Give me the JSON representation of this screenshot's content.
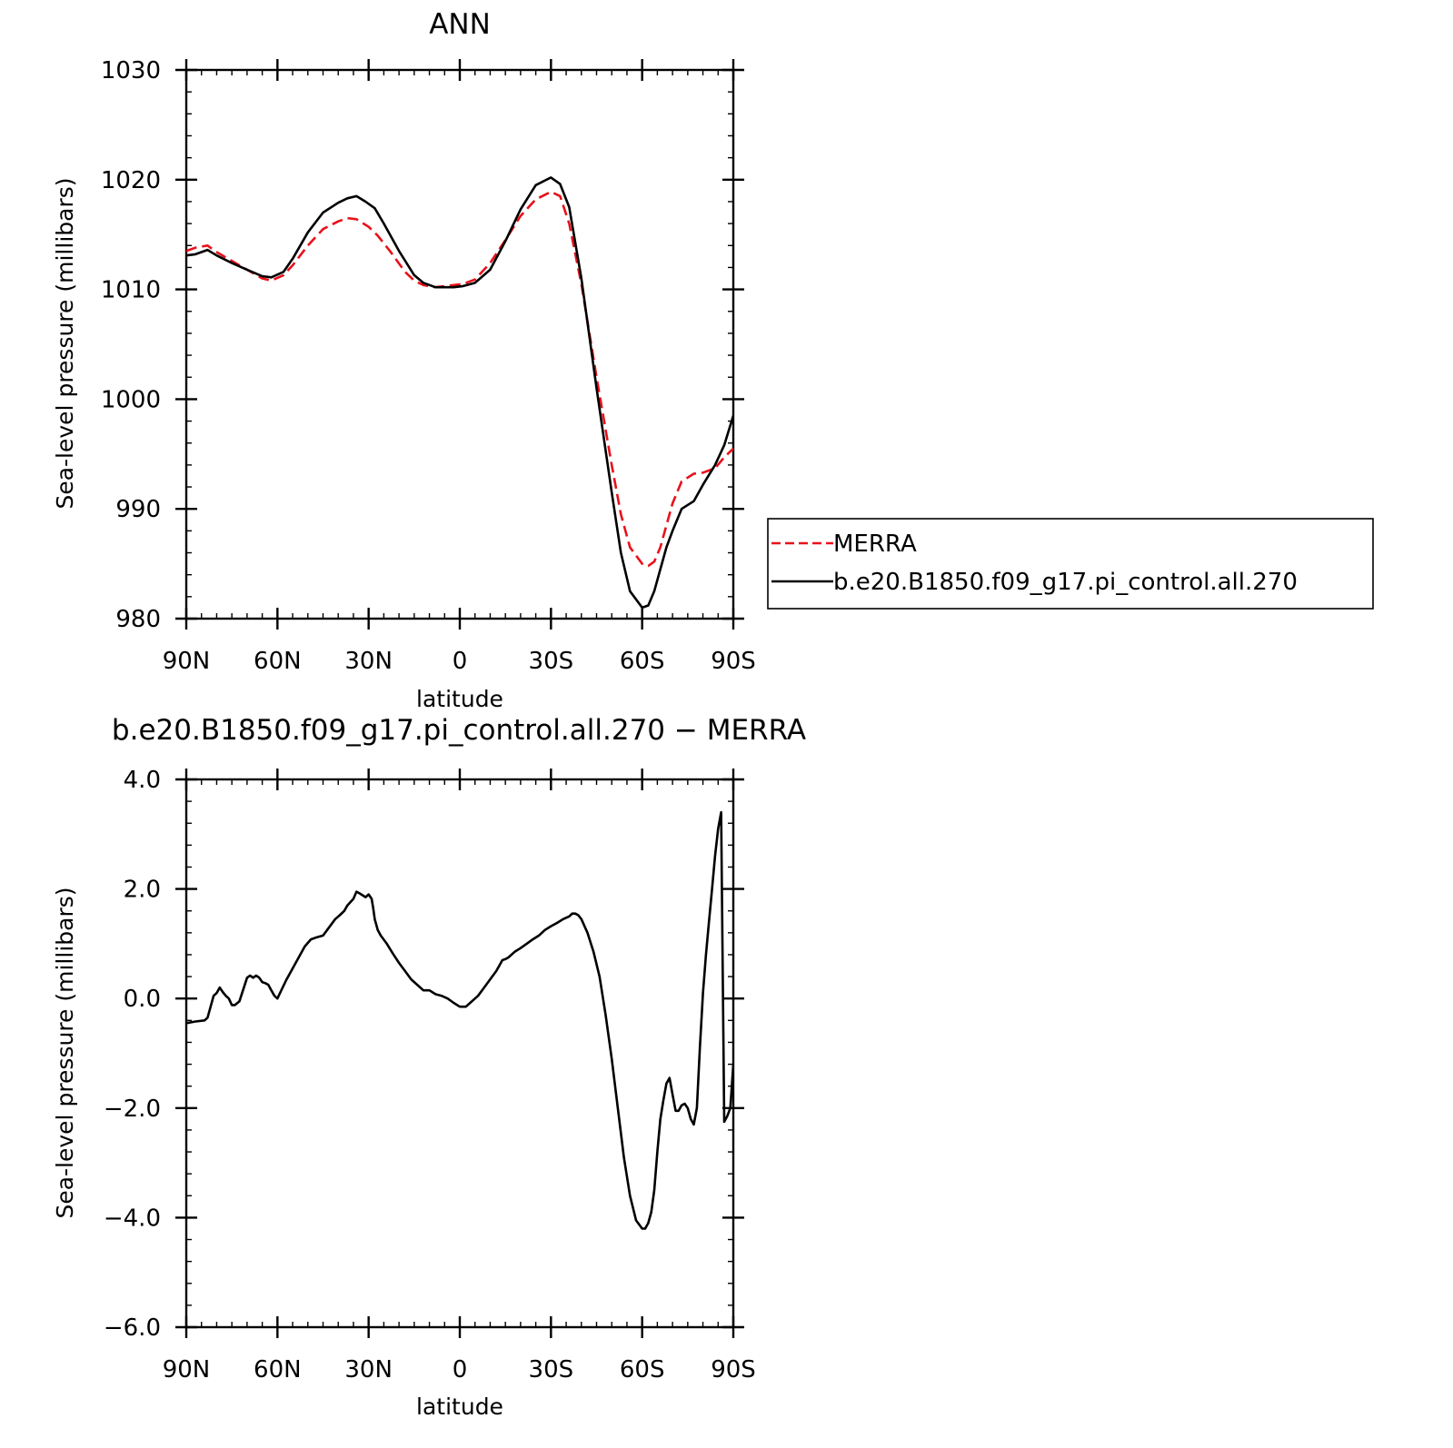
{
  "chart_data": [
    {
      "type": "line",
      "title": "ANN",
      "xlabel": "latitude",
      "ylabel": "Sea-level pressure (millibars)",
      "xlim": [
        90,
        -90
      ],
      "ylim": [
        980,
        1030
      ],
      "x_ticks": [
        {
          "value": 90,
          "label": "90N"
        },
        {
          "value": 60,
          "label": "60N"
        },
        {
          "value": 30,
          "label": "30N"
        },
        {
          "value": 0,
          "label": "0"
        },
        {
          "value": -30,
          "label": "30S"
        },
        {
          "value": -60,
          "label": "60S"
        },
        {
          "value": -90,
          "label": "90S"
        }
      ],
      "y_ticks": [
        {
          "value": 980,
          "label": "980"
        },
        {
          "value": 990,
          "label": "990"
        },
        {
          "value": 1000,
          "label": "1000"
        },
        {
          "value": 1010,
          "label": "1010"
        },
        {
          "value": 1020,
          "label": "1020"
        },
        {
          "value": 1030,
          "label": "1030"
        }
      ],
      "legend": {
        "placement": "right"
      },
      "series": [
        {
          "name": "MERRA",
          "color": "#e8111b",
          "dash": true,
          "x": [
            90,
            87,
            83,
            80,
            75,
            70,
            65,
            62,
            58,
            55,
            50,
            45,
            40,
            37,
            34,
            30,
            27,
            23,
            18,
            15,
            12,
            8,
            5,
            2,
            -1,
            -5,
            -10,
            -15,
            -20,
            -25,
            -30,
            -33,
            -36,
            -40,
            -45,
            -50,
            -53,
            -56,
            -60,
            -62,
            -64,
            -66,
            -68,
            -70,
            -73,
            -77,
            -80,
            -84,
            -87,
            -90
          ],
          "y": [
            1013.5,
            1013.8,
            1014.0,
            1013.4,
            1012.6,
            1011.8,
            1011.0,
            1010.8,
            1011.3,
            1012.2,
            1014.0,
            1015.5,
            1016.2,
            1016.5,
            1016.4,
            1015.7,
            1014.9,
            1013.5,
            1011.6,
            1010.8,
            1010.4,
            1010.2,
            1010.3,
            1010.4,
            1010.5,
            1010.9,
            1012.4,
            1014.5,
            1016.7,
            1018.2,
            1018.9,
            1018.5,
            1016.0,
            1010.5,
            1002.0,
            994.0,
            989.5,
            986.5,
            985.0,
            984.8,
            985.2,
            986.5,
            988.5,
            990.5,
            992.5,
            993.2,
            993.3,
            993.7,
            994.7,
            995.5
          ]
        },
        {
          "name": "b.e20.B1850.f09_g17.pi_control.all.270",
          "color": "#000000",
          "dash": false,
          "x": [
            90,
            87,
            85,
            83,
            80,
            75,
            70,
            65,
            62,
            58,
            55,
            50,
            45,
            40,
            37,
            34,
            31,
            28,
            25,
            20,
            15,
            12,
            8,
            5,
            2,
            -1,
            -5,
            -10,
            -15,
            -20,
            -25,
            -30,
            -33,
            -36,
            -40,
            -45,
            -50,
            -53,
            -56,
            -60,
            -62,
            -64,
            -66,
            -68,
            -70,
            -73,
            -77,
            -80,
            -84,
            -87,
            -90
          ],
          "y": [
            1013.1,
            1013.2,
            1013.4,
            1013.6,
            1013.1,
            1012.4,
            1011.8,
            1011.2,
            1011.1,
            1011.6,
            1012.8,
            1015.2,
            1017.0,
            1017.9,
            1018.3,
            1018.5,
            1018.0,
            1017.4,
            1016.0,
            1013.5,
            1011.3,
            1010.6,
            1010.2,
            1010.2,
            1010.2,
            1010.3,
            1010.6,
            1011.8,
            1014.4,
            1017.3,
            1019.5,
            1020.2,
            1019.6,
            1017.5,
            1011.0,
            1001.0,
            991.5,
            986.0,
            982.5,
            981.0,
            981.2,
            982.5,
            984.5,
            986.5,
            988.0,
            990.0,
            990.7,
            992.2,
            994.0,
            995.8,
            998.5
          ]
        }
      ]
    },
    {
      "type": "line",
      "title": "b.e20.B1850.f09_g17.pi_control.all.270 − MERRA",
      "xlabel": "latitude",
      "ylabel": "Sea-level pressure (millibars)",
      "xlim": [
        90,
        -90
      ],
      "ylim": [
        -6,
        4
      ],
      "x_ticks": [
        {
          "value": 90,
          "label": "90N"
        },
        {
          "value": 60,
          "label": "60N"
        },
        {
          "value": 30,
          "label": "30N"
        },
        {
          "value": 0,
          "label": "0"
        },
        {
          "value": -30,
          "label": "30S"
        },
        {
          "value": -60,
          "label": "60S"
        },
        {
          "value": -90,
          "label": "90S"
        }
      ],
      "y_ticks": [
        {
          "value": -6,
          "label": "−6.0"
        },
        {
          "value": -4,
          "label": "−4.0"
        },
        {
          "value": -2,
          "label": "−2.0"
        },
        {
          "value": 0,
          "label": "0.0"
        },
        {
          "value": 2,
          "label": "2.0"
        },
        {
          "value": 4,
          "label": "4.0"
        }
      ],
      "series": [
        {
          "color": "#000000",
          "dash": false,
          "x": [
            90,
            87,
            84,
            83,
            81,
            80,
            79,
            78,
            77,
            76,
            75,
            74,
            72.5,
            70,
            69,
            68,
            67,
            66,
            65,
            64,
            63,
            62,
            61,
            60,
            59,
            57,
            55,
            53,
            51,
            49,
            47,
            45,
            43,
            41,
            39.5,
            38,
            37,
            35,
            34,
            33,
            31,
            30,
            29,
            28.5,
            28,
            27,
            26,
            24,
            22,
            20,
            18,
            16,
            14,
            12,
            10,
            8,
            6,
            4,
            2,
            0,
            -2,
            -4,
            -6,
            -8,
            -10,
            -12,
            -13,
            -14,
            -15,
            -16,
            -18,
            -20,
            -22,
            -24,
            -26,
            -28,
            -30,
            -32,
            -34,
            -36,
            -37,
            -38,
            -39,
            -40,
            -42,
            -44,
            -46,
            -48,
            -50,
            -52,
            -54,
            -56,
            -58,
            -60,
            -61,
            -62,
            -63,
            -64,
            -65,
            -66,
            -67,
            -68,
            -69,
            -70,
            -71,
            -72,
            -73,
            -74,
            -75,
            -76,
            -77,
            -78,
            -79,
            -80,
            -81,
            -82,
            -83,
            -84,
            -85,
            -86,
            -87,
            -88,
            -89,
            -90
          ],
          "y": [
            -0.45,
            -0.42,
            -0.4,
            -0.35,
            0.05,
            0.1,
            0.2,
            0.12,
            0.05,
            0.0,
            -0.12,
            -0.12,
            -0.05,
            0.38,
            0.42,
            0.38,
            0.42,
            0.38,
            0.3,
            0.28,
            0.25,
            0.15,
            0.05,
            0.0,
            0.12,
            0.35,
            0.55,
            0.75,
            0.95,
            1.08,
            1.12,
            1.15,
            1.3,
            1.45,
            1.52,
            1.6,
            1.7,
            1.82,
            1.95,
            1.92,
            1.85,
            1.9,
            1.82,
            1.65,
            1.45,
            1.25,
            1.15,
            1.0,
            0.82,
            0.65,
            0.5,
            0.35,
            0.25,
            0.15,
            0.15,
            0.08,
            0.05,
            0.0,
            -0.08,
            -0.15,
            -0.15,
            -0.05,
            0.05,
            0.2,
            0.35,
            0.5,
            0.6,
            0.7,
            0.72,
            0.75,
            0.85,
            0.92,
            1.0,
            1.08,
            1.15,
            1.25,
            1.32,
            1.38,
            1.45,
            1.5,
            1.55,
            1.55,
            1.52,
            1.45,
            1.2,
            0.85,
            0.4,
            -0.3,
            -1.1,
            -2.0,
            -2.9,
            -3.6,
            -4.05,
            -4.2,
            -4.2,
            -4.1,
            -3.9,
            -3.5,
            -2.8,
            -2.2,
            -1.85,
            -1.55,
            -1.45,
            -1.75,
            -2.05,
            -2.05,
            -1.95,
            -1.92,
            -2.0,
            -2.2,
            -2.3,
            -2.0,
            -0.9,
            0.1,
            0.8,
            1.4,
            2.0,
            2.6,
            3.1,
            3.4,
            -2.25,
            -2.15,
            -2.0,
            -1.2
          ]
        }
      ]
    }
  ]
}
